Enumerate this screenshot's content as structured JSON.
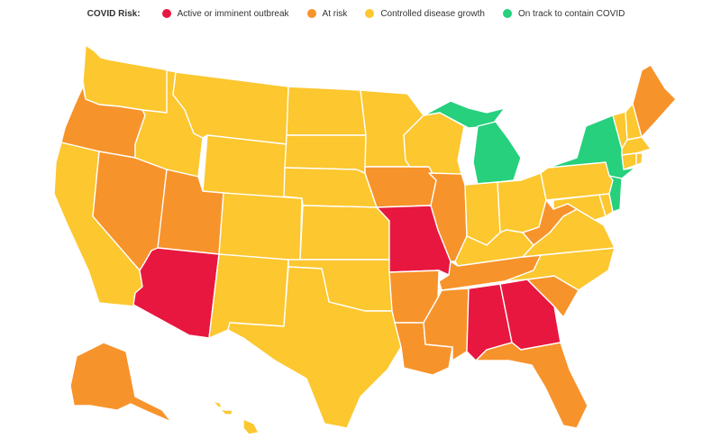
{
  "legend": {
    "title": "COVID Risk:",
    "items": [
      {
        "label": "Active or imminent outbreak",
        "color": "#e8173f"
      },
      {
        "label": "At risk",
        "color": "#f7932b"
      },
      {
        "label": "Controlled disease growth",
        "color": "#fcc72f"
      },
      {
        "label": "On track to contain COVID",
        "color": "#26d07c"
      }
    ]
  },
  "map": {
    "regions": [
      {
        "name": "washington",
        "risk": "Controlled disease growth"
      },
      {
        "name": "oregon",
        "risk": "At risk"
      },
      {
        "name": "california",
        "risk": "Controlled disease growth"
      },
      {
        "name": "nevada",
        "risk": "At risk"
      },
      {
        "name": "idaho",
        "risk": "Controlled disease growth"
      },
      {
        "name": "montana",
        "risk": "Controlled disease growth"
      },
      {
        "name": "wyoming",
        "risk": "Controlled disease growth"
      },
      {
        "name": "utah",
        "risk": "At risk"
      },
      {
        "name": "arizona",
        "risk": "Active or imminent outbreak"
      },
      {
        "name": "colorado",
        "risk": "Controlled disease growth"
      },
      {
        "name": "new-mexico",
        "risk": "Controlled disease growth"
      },
      {
        "name": "north-dakota",
        "risk": "Controlled disease growth"
      },
      {
        "name": "south-dakota",
        "risk": "Controlled disease growth"
      },
      {
        "name": "nebraska",
        "risk": "Controlled disease growth"
      },
      {
        "name": "kansas",
        "risk": "Controlled disease growth"
      },
      {
        "name": "oklahoma",
        "risk": "Controlled disease growth"
      },
      {
        "name": "texas",
        "risk": "Controlled disease growth"
      },
      {
        "name": "minnesota",
        "risk": "Controlled disease growth"
      },
      {
        "name": "iowa",
        "risk": "At risk"
      },
      {
        "name": "missouri",
        "risk": "Active or imminent outbreak"
      },
      {
        "name": "arkansas",
        "risk": "At risk"
      },
      {
        "name": "louisiana",
        "risk": "At risk"
      },
      {
        "name": "wisconsin",
        "risk": "Controlled disease growth"
      },
      {
        "name": "illinois",
        "risk": "At risk"
      },
      {
        "name": "michigan",
        "risk": "On track to contain COVID"
      },
      {
        "name": "indiana",
        "risk": "Controlled disease growth"
      },
      {
        "name": "ohio",
        "risk": "Controlled disease growth"
      },
      {
        "name": "kentucky",
        "risk": "Controlled disease growth"
      },
      {
        "name": "tennessee",
        "risk": "At risk"
      },
      {
        "name": "mississippi",
        "risk": "At risk"
      },
      {
        "name": "alabama",
        "risk": "Active or imminent outbreak"
      },
      {
        "name": "georgia",
        "risk": "Active or imminent outbreak"
      },
      {
        "name": "florida",
        "risk": "At risk"
      },
      {
        "name": "south-carolina",
        "risk": "At risk"
      },
      {
        "name": "north-carolina",
        "risk": "Controlled disease growth"
      },
      {
        "name": "virginia",
        "risk": "Controlled disease growth"
      },
      {
        "name": "west-virginia",
        "risk": "At risk"
      },
      {
        "name": "maryland",
        "risk": "Controlled disease growth"
      },
      {
        "name": "delaware",
        "risk": "Controlled disease growth"
      },
      {
        "name": "pennsylvania",
        "risk": "Controlled disease growth"
      },
      {
        "name": "new-york",
        "risk": "On track to contain COVID"
      },
      {
        "name": "new-jersey",
        "risk": "On track to contain COVID"
      },
      {
        "name": "connecticut",
        "risk": "Controlled disease growth"
      },
      {
        "name": "rhode-island",
        "risk": "Controlled disease growth"
      },
      {
        "name": "massachusetts",
        "risk": "Controlled disease growth"
      },
      {
        "name": "vermont",
        "risk": "Controlled disease growth"
      },
      {
        "name": "new-hampshire",
        "risk": "Controlled disease growth"
      },
      {
        "name": "maine",
        "risk": "At risk"
      },
      {
        "name": "alaska",
        "risk": "At risk"
      },
      {
        "name": "hawaii",
        "risk": "Controlled disease growth"
      }
    ]
  }
}
